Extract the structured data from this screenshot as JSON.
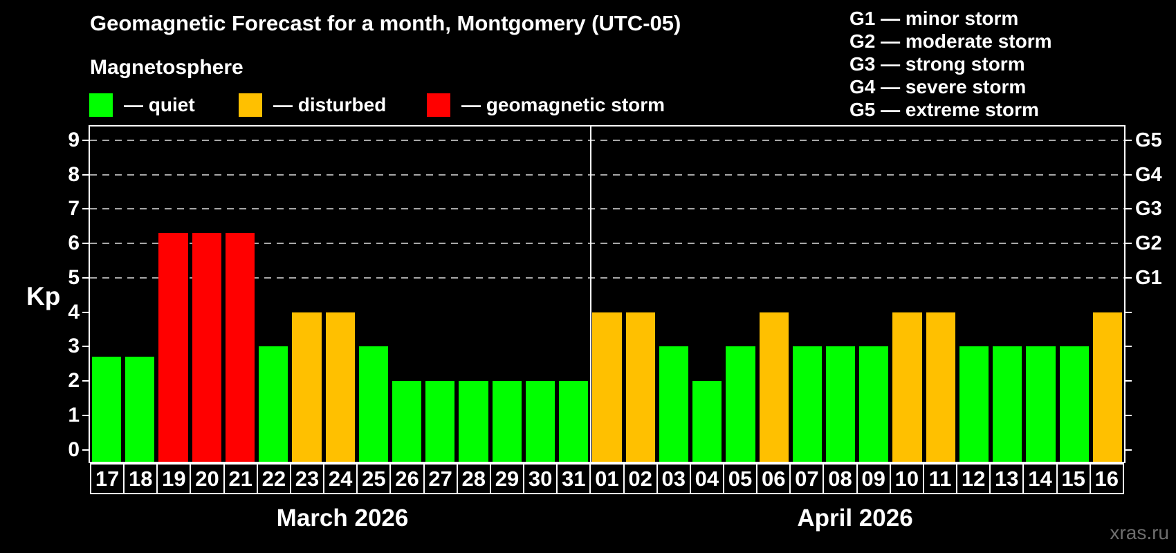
{
  "title": "Geomagnetic Forecast for a month, Montgomery (UTC-05)",
  "subtitle": "Magnetosphere",
  "axis": {
    "ylabel": "Kp"
  },
  "legend": [
    {
      "name": "quiet",
      "label": "— quiet",
      "color": "#00ff00"
    },
    {
      "name": "disturbed",
      "label": "— disturbed",
      "color": "#ffc000"
    },
    {
      "name": "storm",
      "label": "— geomagnetic storm",
      "color": "#ff0000"
    }
  ],
  "g_scale_legend": [
    "G1 — minor storm",
    "G2 — moderate storm",
    "G3 — strong storm",
    "G4 — severe storm",
    "G5 — extreme storm"
  ],
  "watermark": "xras.ru",
  "colors": {
    "quiet": "#00ff00",
    "disturbed": "#ffc000",
    "storm": "#ff0000",
    "grid": "#a8a8a8",
    "axis": "#ffffff",
    "watermark": "#6e6e6e",
    "background": "#000000"
  },
  "chart_data": {
    "type": "bar",
    "title": "Geomagnetic Forecast for a month, Montgomery (UTC-05)",
    "xlabel": "",
    "ylabel": "Kp",
    "ylim": [
      -0.35,
      9.4
    ],
    "yticks": [
      0,
      1,
      2,
      3,
      4,
      5,
      6,
      7,
      8,
      9
    ],
    "gridlines_at": [
      5,
      6,
      7,
      8,
      9
    ],
    "grid_style": "dashed horizontal lines at storm levels only",
    "legend_position": "top-left",
    "right_axis_labels": [
      {
        "kp": 5,
        "label": "G1"
      },
      {
        "kp": 6,
        "label": "G2"
      },
      {
        "kp": 7,
        "label": "G3"
      },
      {
        "kp": 8,
        "label": "G4"
      },
      {
        "kp": 9,
        "label": "G5"
      }
    ],
    "color_thresholds": {
      "disturbed_min": 4,
      "storm_min": 5
    },
    "months": [
      {
        "label": "March 2026",
        "days": [
          "17",
          "18",
          "19",
          "20",
          "21",
          "22",
          "23",
          "24",
          "25",
          "26",
          "27",
          "28",
          "29",
          "30",
          "31"
        ],
        "values": [
          2.7,
          2.7,
          6.3,
          6.3,
          6.3,
          3,
          4,
          4,
          3,
          2,
          2,
          2,
          2,
          2,
          2
        ]
      },
      {
        "label": "April 2026",
        "days": [
          "01",
          "02",
          "03",
          "04",
          "05",
          "06",
          "07",
          "08",
          "09",
          "10",
          "11",
          "12",
          "13",
          "14",
          "15",
          "16"
        ],
        "values": [
          4,
          4,
          3,
          2,
          3,
          4,
          3,
          3,
          3,
          4,
          4,
          3,
          3,
          3,
          3,
          4
        ]
      }
    ]
  }
}
